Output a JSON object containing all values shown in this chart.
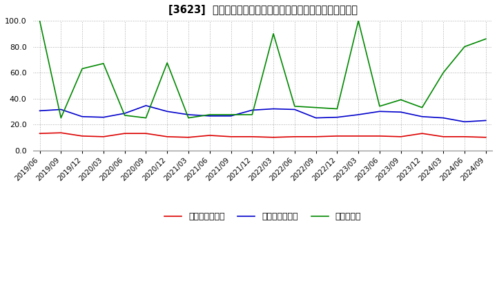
{
  "title": "[3623]  売上債権回転率、買入債務回転率、在庫回転率の推移",
  "ylim": [
    0.0,
    100.0
  ],
  "ytick_values": [
    0,
    20,
    40,
    60,
    80,
    100
  ],
  "ytick_labels": [
    "0.0",
    "20.0",
    "40.0",
    "60.0",
    "80.0",
    "100.0"
  ],
  "background_color": "#ffffff",
  "grid_color": "#aaaaaa",
  "dates": [
    "2019/06",
    "2019/09",
    "2019/12",
    "2020/03",
    "2020/06",
    "2020/09",
    "2020/12",
    "2021/03",
    "2021/06",
    "2021/09",
    "2021/12",
    "2022/03",
    "2022/06",
    "2022/09",
    "2022/12",
    "2023/03",
    "2023/06",
    "2023/09",
    "2023/12",
    "2024/03",
    "2024/06",
    "2024/09"
  ],
  "売上債権回転率": [
    13.0,
    13.5,
    11.0,
    10.5,
    13.0,
    13.0,
    10.5,
    10.0,
    11.5,
    10.5,
    10.5,
    10.0,
    10.5,
    10.5,
    11.0,
    11.0,
    11.0,
    10.5,
    13.0,
    10.5,
    10.5,
    10.0
  ],
  "買入債務回転率": [
    30.5,
    31.5,
    26.0,
    25.5,
    28.5,
    34.5,
    30.0,
    27.5,
    26.5,
    26.5,
    31.0,
    32.0,
    31.5,
    25.0,
    25.5,
    27.5,
    30.0,
    29.5,
    26.0,
    25.0,
    22.0,
    23.0
  ],
  "在庫回転率": [
    100.0,
    25.0,
    63.0,
    67.0,
    27.0,
    25.0,
    67.5,
    25.0,
    27.5,
    27.5,
    27.5,
    90.0,
    34.0,
    33.0,
    32.0,
    100.0,
    34.0,
    39.0,
    33.0,
    60.0,
    80.0,
    86.0
  ],
  "line_color_red": "#dd0000",
  "line_color_blue": "#0000cc",
  "line_color_green": "#008800",
  "legend_labels": [
    "売上債権回転率",
    "買入債務回転率",
    "在庫回転率"
  ]
}
